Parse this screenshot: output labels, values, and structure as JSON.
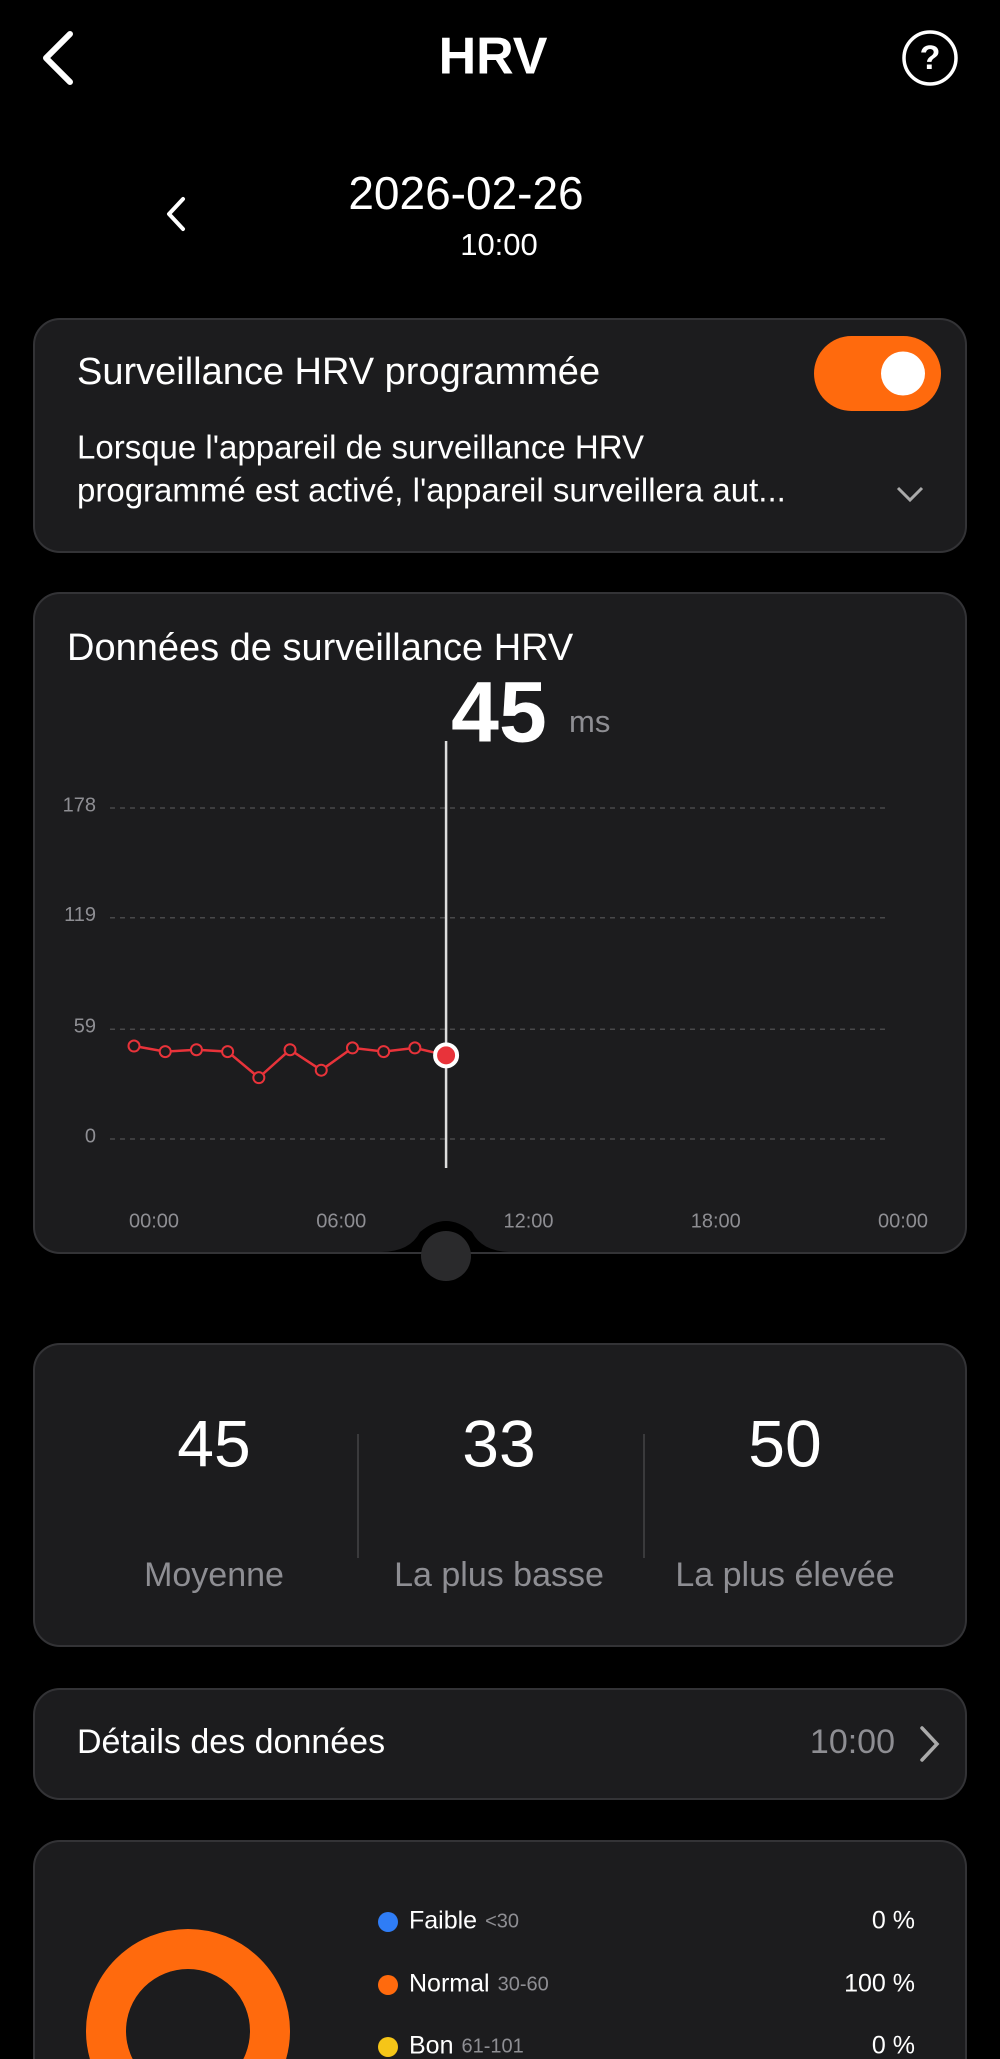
{
  "header": {
    "title": "HRV"
  },
  "date": {
    "day": "2026-02-26",
    "time": "10:00"
  },
  "schedule_card": {
    "title": "Surveillance HRV programmée",
    "description": [
      "Lorsque l'appareil de surveillance HRV",
      "programmé est activé, l'appareil surveillera aut..."
    ],
    "enabled": true,
    "toggle_color": "#ff6a0d"
  },
  "chart_data": [
    {
      "type": "line",
      "title": "Données de surveillance HRV",
      "selected_value": 45,
      "unit": "ms",
      "x": [
        0,
        1,
        2,
        3,
        4,
        5,
        6,
        7,
        8,
        9,
        10
      ],
      "values": [
        50,
        47,
        48,
        47,
        33,
        48,
        37,
        49,
        47,
        49,
        45
      ],
      "color": "#e8333a",
      "xlim": [
        0,
        24
      ],
      "xticks": [
        {
          "value": 0,
          "label": "00:00"
        },
        {
          "value": 6,
          "label": "06:00"
        },
        {
          "value": 12,
          "label": "12:00"
        },
        {
          "value": 18,
          "label": "18:00"
        },
        {
          "value": 24,
          "label": "00:00"
        }
      ],
      "ylim": [
        0,
        178
      ],
      "yticks": [
        0,
        59,
        119,
        178
      ],
      "grid": true
    },
    {
      "type": "pie",
      "categories": [
        "Faible",
        "Normal",
        "Bon"
      ],
      "ranges": [
        "<30",
        "30-60",
        "61-101"
      ],
      "values": [
        0,
        100,
        0
      ],
      "value_labels": [
        "0 %",
        "100 %",
        "0 %"
      ],
      "colors": [
        "#2f7df6",
        "#ff6a0d",
        "#f5c518"
      ]
    }
  ],
  "stats": [
    {
      "value": 45,
      "label": "Moyenne"
    },
    {
      "value": 33,
      "label": "La plus basse"
    },
    {
      "value": 50,
      "label": "La plus élevée"
    }
  ],
  "details": {
    "label": "Détails des données",
    "time": "10:00"
  }
}
